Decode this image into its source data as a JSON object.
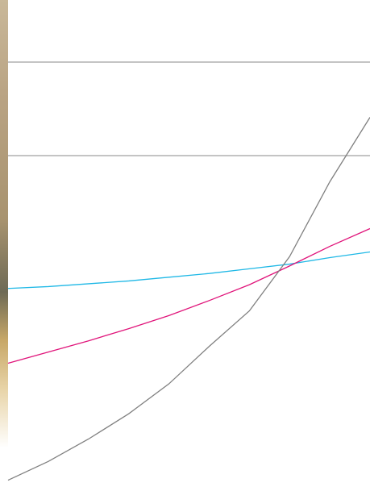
{
  "chart_data": {
    "type": "line",
    "x": [
      0,
      1,
      2,
      3,
      4,
      5,
      6,
      7,
      8,
      9
    ],
    "xlim": [
      0,
      9
    ],
    "ylim": [
      0.457,
      5.664
    ],
    "yticks": [
      4,
      5
    ],
    "grid": true,
    "tick_labels": false,
    "series": [
      {
        "color": "#1fb8e6",
        "values": [
          2.58,
          2.6,
          2.63,
          2.66,
          2.7,
          2.74,
          2.79,
          2.84,
          2.91,
          2.97
        ]
      },
      {
        "color": "#e0147a",
        "values": [
          1.78,
          1.9,
          2.02,
          2.15,
          2.29,
          2.45,
          2.62,
          2.82,
          3.03,
          3.22
        ]
      },
      {
        "color": "#808080",
        "values": [
          0.53,
          0.73,
          0.97,
          1.24,
          1.56,
          1.96,
          2.34,
          2.92,
          3.72,
          4.41
        ]
      }
    ]
  }
}
